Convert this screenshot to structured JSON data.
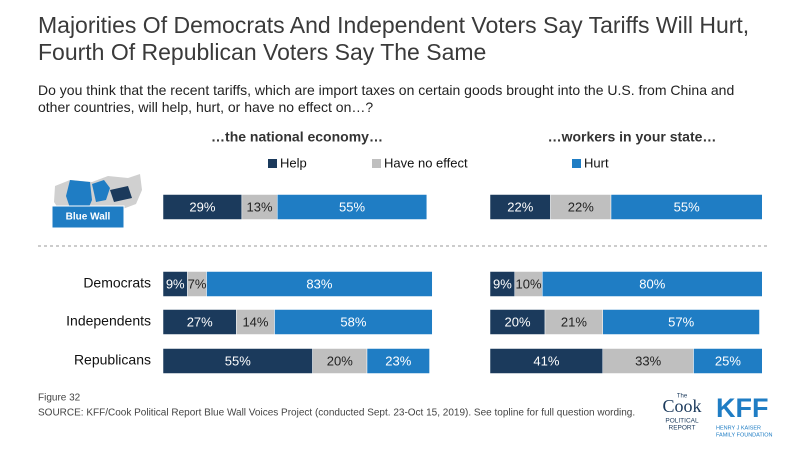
{
  "header": {
    "title": "Majorities Of Democrats And Independent Voters Say Tariffs Will Hurt, Fourth Of Republican Voters Say The Same",
    "subtitle": "Do you think that the recent tariffs, which are import taxes on certain goods brought into the U.S. from China and other countries, will help, hurt, or have no effect on…?"
  },
  "chart_data": {
    "type": "bar",
    "stacked": true,
    "orientation": "horizontal",
    "categories": [
      "Blue Wall",
      "Democrats",
      "Independents",
      "Republicans"
    ],
    "xlim": [
      0,
      100
    ],
    "series": [
      {
        "name": "Help",
        "color": "#1b3a5c",
        "text_color": "#ffffff"
      },
      {
        "name": "Have no effect",
        "color": "#bfbfbf",
        "text_color": "#222222"
      },
      {
        "name": "Hurt",
        "color": "#1f7dc4",
        "text_color": "#ffffff"
      }
    ],
    "panels": [
      {
        "title": "…the national economy…",
        "series": [
          {
            "values": [
              29,
              9,
              27,
              55
            ],
            "value_labels": [
              "29%",
              "9%",
              "27%",
              "55%"
            ]
          },
          {
            "values": [
              13,
              7,
              14,
              20
            ],
            "value_labels": [
              "13%",
              "7%",
              "14%",
              "20%"
            ]
          },
          {
            "values": [
              55,
              83,
              58,
              23
            ],
            "value_labels": [
              "55%",
              "83%",
              "58%",
              "23%"
            ]
          }
        ]
      },
      {
        "title": "…workers in your state…",
        "series": [
          {
            "values": [
              22,
              9,
              20,
              41
            ],
            "value_labels": [
              "22%",
              "9%",
              "20%",
              "41%"
            ]
          },
          {
            "values": [
              22,
              10,
              21,
              33
            ],
            "value_labels": [
              "22%",
              "10%",
              "21%",
              "33%"
            ]
          },
          {
            "values": [
              55,
              80,
              57,
              25
            ],
            "value_labels": [
              "55%",
              "80%",
              "57%",
              "25%"
            ]
          }
        ]
      }
    ]
  },
  "footer": {
    "figure": "Figure 32",
    "source": "SOURCE: KFF/Cook Political Report Blue Wall Voices Project (conducted Sept. 23-Oct 15, 2019). See topline for full question wording.",
    "cook": [
      "The",
      "Cook",
      "POLITICAL",
      "REPORT"
    ],
    "kff": [
      "KFF",
      "HENRY J KAISER",
      "FAMILY FOUNDATION"
    ]
  }
}
